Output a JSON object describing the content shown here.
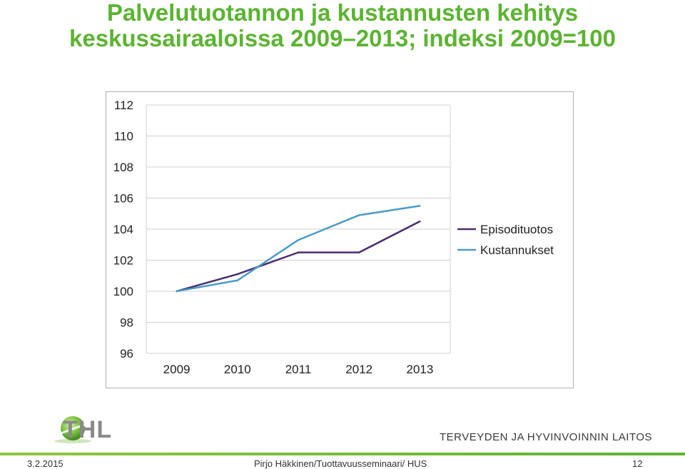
{
  "title": {
    "line1": "Palvelutuotannon ja kustannusten kehitys",
    "line2": "keskussairaaloissa 2009–2013; indeksi 2009=100"
  },
  "chart_data": {
    "type": "line",
    "x": [
      "2009",
      "2010",
      "2011",
      "2012",
      "2013"
    ],
    "y_ticks": [
      "112",
      "110",
      "108",
      "106",
      "104",
      "102",
      "100",
      "98",
      "96"
    ],
    "ylim": [
      96,
      112
    ],
    "grid": true,
    "legend_position": "right",
    "series": [
      {
        "name": "Episodituotos",
        "values": [
          100.0,
          101.1,
          102.5,
          102.5,
          104.5
        ],
        "color": "#4b2d73"
      },
      {
        "name": "Kustannukset",
        "values": [
          100.0,
          100.7,
          103.3,
          104.9,
          105.5
        ],
        "color": "#4a9cc9"
      }
    ]
  },
  "logo": {
    "text": "THL",
    "icon": "thl-sphere-icon"
  },
  "organization": "TERVEYDEN JA HYVINVOINNIN LAITOS",
  "footer": {
    "date": "3.2.2015",
    "author": "Pirjo Häkkinen/Tuottavuusseminaari/ HUS",
    "page": "12"
  }
}
